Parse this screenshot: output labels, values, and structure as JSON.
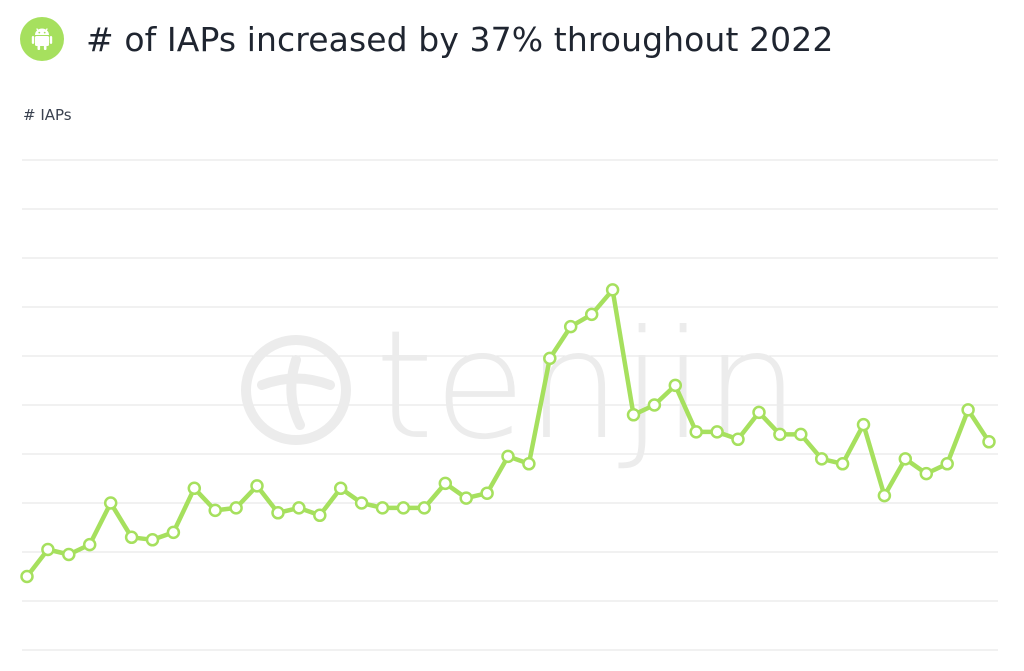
{
  "header": {
    "title": "# of IAPs increased by 37% throughout 2022",
    "icon": "android-icon"
  },
  "watermark": {
    "text": "tenjin"
  },
  "colors": {
    "line": "#a6e05e",
    "grid": "#e3e3e3",
    "badge": "#a6e05e"
  },
  "chart_data": {
    "type": "line",
    "ylabel": "# IAPs",
    "xlabel": "",
    "grid": true,
    "series": [
      {
        "values": [
          3.0,
          4.1,
          3.9,
          4.3,
          6.0,
          4.6,
          4.5,
          4.8,
          6.6,
          5.7,
          5.8,
          6.7,
          5.6,
          5.8,
          5.5,
          6.6,
          6.0,
          5.8,
          5.8,
          5.8,
          6.8,
          6.2,
          6.4,
          7.9,
          7.6,
          11.9,
          13.2,
          13.7,
          14.7,
          9.6,
          10.0,
          10.8,
          8.9,
          8.9,
          8.6,
          9.7,
          8.8,
          8.8,
          7.8,
          7.6,
          9.2,
          6.3,
          7.8,
          7.2,
          7.6,
          9.8,
          8.5
        ]
      }
    ]
  }
}
